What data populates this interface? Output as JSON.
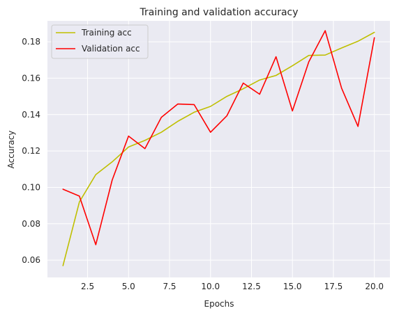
{
  "chart_data": {
    "type": "line",
    "title": "Training and validation accuracy",
    "xlabel": "Epochs",
    "ylabel": "Accuracy",
    "xlim": [
      0.05,
      20.95
    ],
    "ylim": [
      0.0505,
      0.1915
    ],
    "xticks": [
      2.5,
      5.0,
      7.5,
      10.0,
      12.5,
      15.0,
      17.5,
      20.0
    ],
    "xtick_labels": [
      "2.5",
      "5.0",
      "7.5",
      "10.0",
      "12.5",
      "15.0",
      "17.5",
      "20.0"
    ],
    "yticks": [
      0.06,
      0.08,
      0.1,
      0.12,
      0.14,
      0.16,
      0.18
    ],
    "ytick_labels": [
      "0.06",
      "0.08",
      "0.10",
      "0.12",
      "0.14",
      "0.16",
      "0.18"
    ],
    "grid": true,
    "background_color": "#eaeaf2",
    "grid_color": "#ffffff",
    "legend_position": "top-left",
    "x": [
      1,
      2,
      3,
      4,
      5,
      6,
      7,
      8,
      9,
      10,
      11,
      12,
      13,
      14,
      15,
      16,
      17,
      18,
      19,
      20
    ],
    "series": [
      {
        "name": "Training acc",
        "color": "#bfbf00",
        "values": [
          0.057,
          0.092,
          0.107,
          0.114,
          0.1222,
          0.1258,
          0.1303,
          0.1363,
          0.1413,
          0.1445,
          0.15,
          0.1542,
          0.159,
          0.1615,
          0.1668,
          0.1725,
          0.1727,
          0.1766,
          0.1803,
          0.1852
        ]
      },
      {
        "name": "Validation acc",
        "color": "#ff0000",
        "values": [
          0.099,
          0.0952,
          0.0685,
          0.104,
          0.1282,
          0.1213,
          0.1385,
          0.1458,
          0.1455,
          0.1303,
          0.1393,
          0.1573,
          0.1512,
          0.1718,
          0.142,
          0.169,
          0.1861,
          0.1545,
          0.1335,
          0.1822
        ]
      }
    ]
  }
}
